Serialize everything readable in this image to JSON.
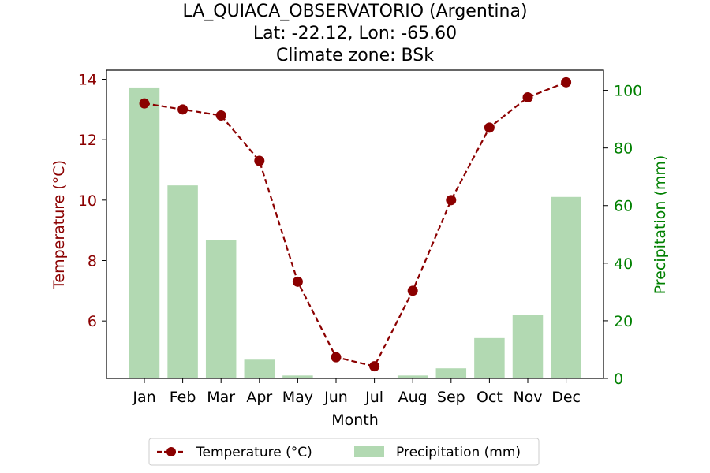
{
  "chart_data": {
    "type": "bar+line",
    "title": [
      "LA_QUIACA_OBSERVATORIO (Argentina)",
      "Lat: -22.12, Lon: -65.60",
      "Climate zone: BSk"
    ],
    "xlabel": "Month",
    "categories": [
      "Jan",
      "Feb",
      "Mar",
      "Apr",
      "May",
      "Jun",
      "Jul",
      "Aug",
      "Sep",
      "Oct",
      "Nov",
      "Dec"
    ],
    "temperature": {
      "name": "Temperature (°C)",
      "axis_label": "Temperature (°C)",
      "color": "#8b0000",
      "values": [
        13.2,
        13.0,
        12.8,
        11.3,
        7.3,
        4.8,
        4.5,
        7.0,
        10.0,
        12.4,
        13.4,
        13.9
      ],
      "ylim": [
        4.1,
        14.3
      ],
      "ticks": [
        6,
        8,
        10,
        12,
        14
      ]
    },
    "precipitation": {
      "name": "Precipitation (mm)",
      "axis_label": "Precipitation (mm)",
      "color": "#008000",
      "bar_color": "#b2d9b2",
      "values": [
        101,
        67,
        48,
        6.5,
        1,
        0,
        0,
        1,
        3.5,
        14,
        22,
        63
      ],
      "ylim": [
        0,
        107
      ],
      "ticks": [
        0,
        20,
        40,
        60,
        80,
        100
      ]
    },
    "legend": {
      "position": "bottom-center"
    }
  }
}
